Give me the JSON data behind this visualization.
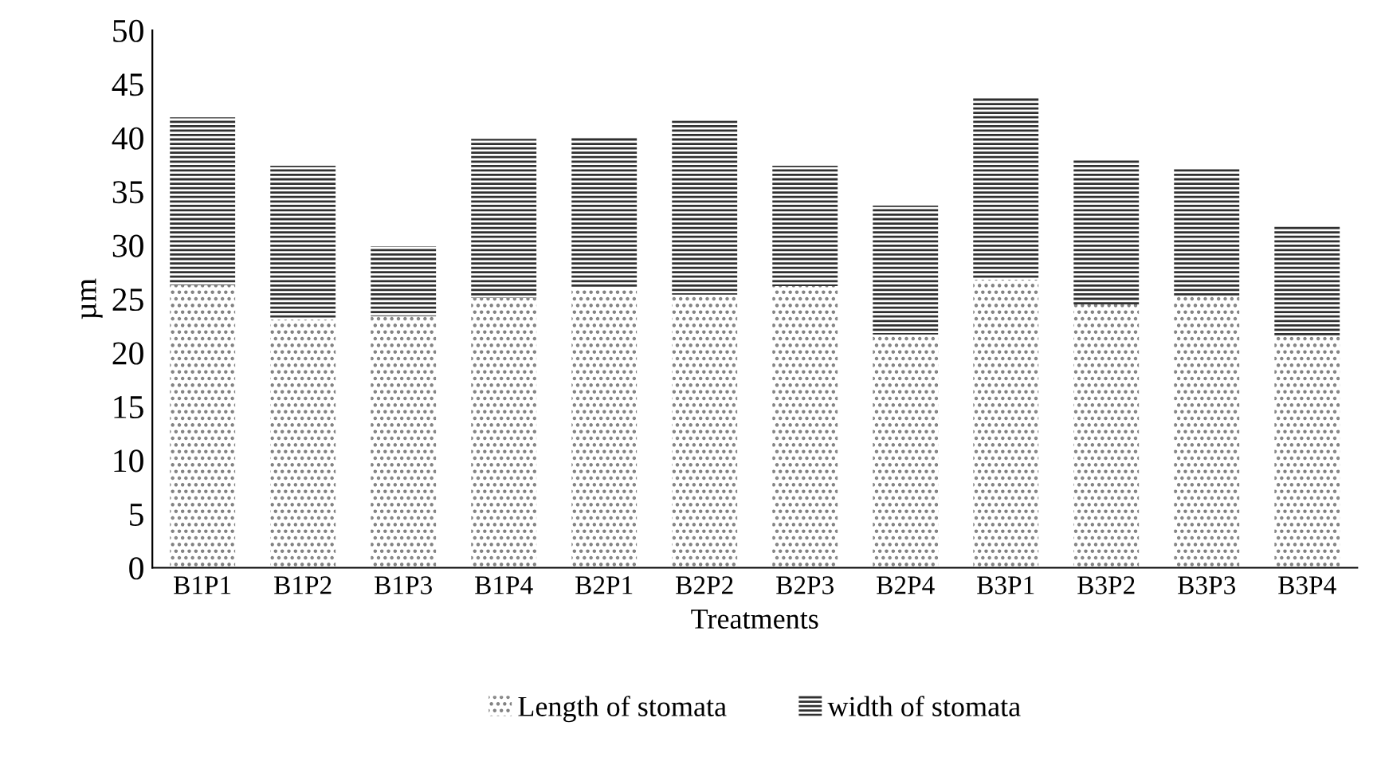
{
  "chart_data": {
    "type": "bar",
    "stacked": true,
    "xlabel": "Treatments",
    "ylabel": "µm",
    "categories": [
      "B1P1",
      "B1P2",
      "B1P3",
      "B1P4",
      "B2P1",
      "B2P2",
      "B2P3",
      "B2P4",
      "B3P1",
      "B3P2",
      "B3P3",
      "B3P4"
    ],
    "series": [
      {
        "name": "Length of stomata",
        "color": "#808080",
        "values": [
          26.3,
          23.1,
          23.4,
          25.1,
          26.0,
          25.4,
          26.2,
          21.7,
          26.8,
          24.5,
          25.3,
          21.5
        ]
      },
      {
        "name": "width of stomata",
        "color": "#303030",
        "values": [
          15.6,
          14.3,
          6.5,
          14.8,
          14.1,
          16.2,
          11.2,
          12.0,
          16.9,
          13.5,
          11.8,
          10.3
        ]
      }
    ],
    "ylim": [
      0,
      50
    ],
    "yticks": [
      0,
      5,
      10,
      15,
      20,
      25,
      30,
      35,
      40,
      45,
      50
    ],
    "grid": false,
    "legend": "bottom"
  }
}
